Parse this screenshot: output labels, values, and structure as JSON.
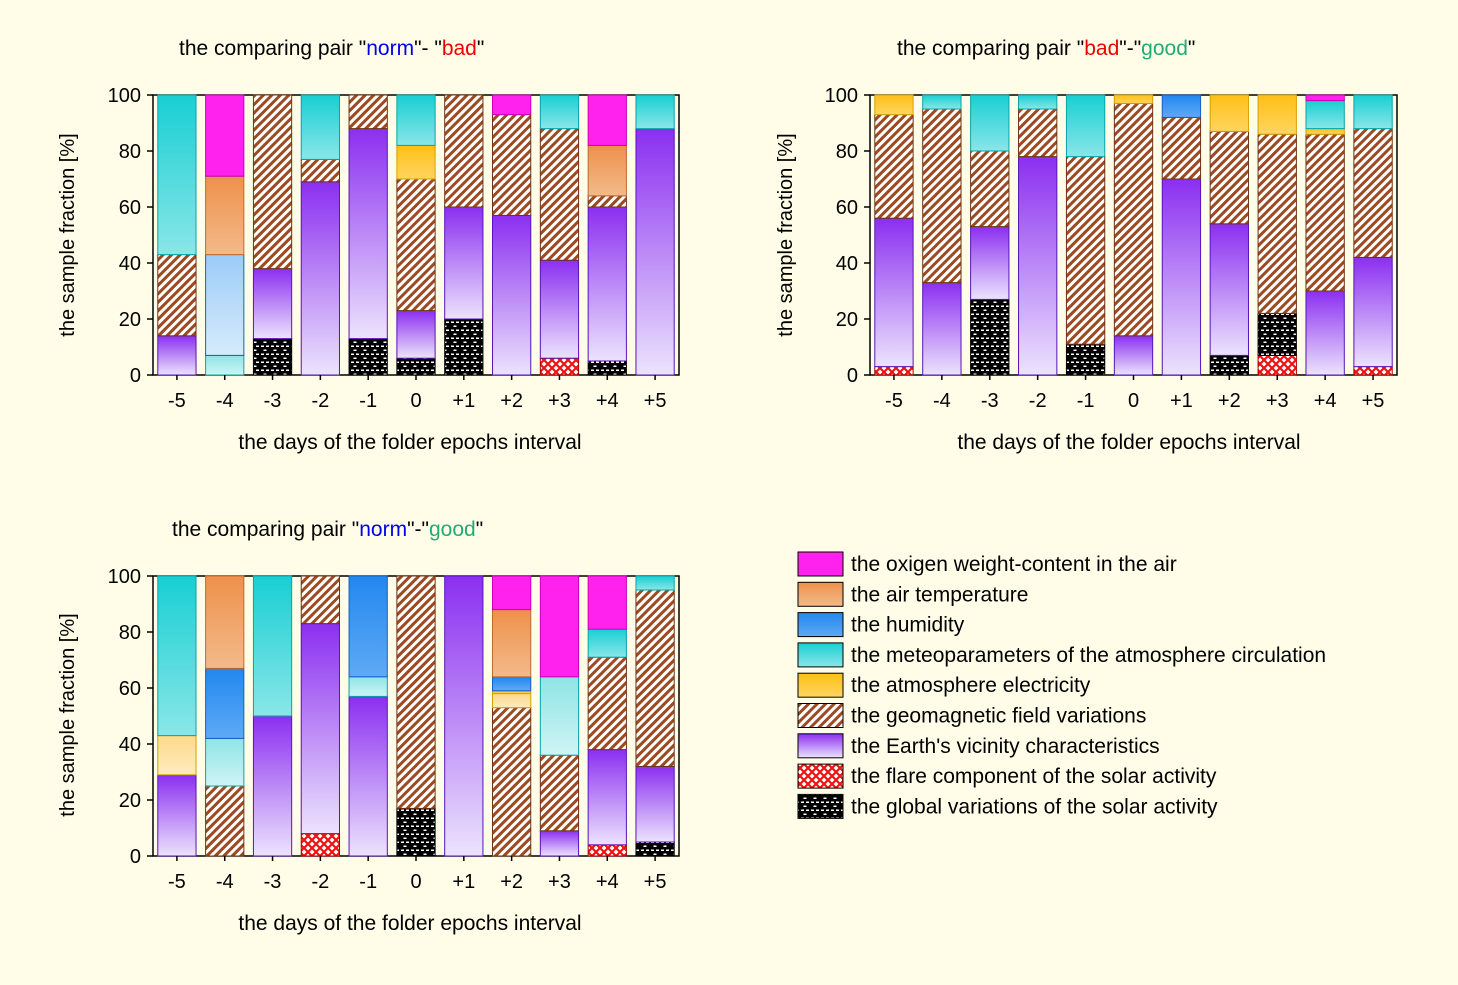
{
  "page": {
    "background": "#fffde8"
  },
  "legend": {
    "items": [
      {
        "label": "the oxigen weight-content in the air",
        "key": "oxygen"
      },
      {
        "label": "the air temperature",
        "key": "temperature"
      },
      {
        "label": "the humidity",
        "key": "humidity"
      },
      {
        "label": "the meteoparameters of the atmosphere circulation",
        "key": "meteo"
      },
      {
        "label": "the atmosphere electricity",
        "key": "electricity"
      },
      {
        "label": "the geomagnetic field variations",
        "key": "geomagnetic"
      },
      {
        "label": "the Earth's vicinity characteristics",
        "key": "vicinity"
      },
      {
        "label": "the flare component of the solar activity",
        "key": "flare"
      },
      {
        "label": "the global variations of the solar activity",
        "key": "global"
      }
    ]
  },
  "colors": {
    "oxygen": "#ff22ee",
    "temperature": "#ee9a55",
    "humidity": "#2b8cf0",
    "meteo": "#1ccfd2",
    "electricity": "#ffc21f",
    "geomagnetic": "#a0522d",
    "vicinity": "#8a2be2",
    "flare": "#ee1111",
    "global": "#000000",
    "title_norm": "#0000ee",
    "title_bad": "#ee0000",
    "title_good": "#22aa77"
  },
  "chart_data": [
    {
      "type": "bar",
      "stacked": true,
      "title_parts": [
        {
          "text": "the comparing pair \"",
          "color": "#000000"
        },
        {
          "text": "norm",
          "color": "#0000ee"
        },
        {
          "text": "\"- \"",
          "color": "#000000"
        },
        {
          "text": "bad",
          "color": "#ee0000"
        },
        {
          "text": "\"",
          "color": "#000000"
        }
      ],
      "xlabel": "the days of the folder epochs interval",
      "ylabel": "the sample fraction [%]",
      "ylim": [
        0,
        100
      ],
      "yticks": [
        0,
        20,
        40,
        60,
        80,
        100
      ],
      "categories": [
        "-5",
        "-4",
        "-3",
        "-2",
        "-1",
        "0",
        "+1",
        "+2",
        "+3",
        "+4",
        "+5"
      ],
      "bars": [
        [
          {
            "s": "vicinity",
            "v": 14
          },
          {
            "s": "geomagnetic",
            "v": 29
          },
          {
            "s": "meteo",
            "v": 57
          }
        ],
        [
          {
            "s": "meteo",
            "v": 7,
            "pale": true
          },
          {
            "s": "humidity",
            "v": 36,
            "pale": true
          },
          {
            "s": "temperature",
            "v": 28
          },
          {
            "s": "oxygen",
            "v": 29
          }
        ],
        [
          {
            "s": "global",
            "v": 13
          },
          {
            "s": "vicinity",
            "v": 25
          },
          {
            "s": "geomagnetic",
            "v": 62
          }
        ],
        [
          {
            "s": "vicinity",
            "v": 69
          },
          {
            "s": "geomagnetic",
            "v": 8
          },
          {
            "s": "meteo",
            "v": 23
          }
        ],
        [
          {
            "s": "global",
            "v": 13
          },
          {
            "s": "vicinity",
            "v": 75
          },
          {
            "s": "geomagnetic",
            "v": 12
          }
        ],
        [
          {
            "s": "global",
            "v": 6
          },
          {
            "s": "vicinity",
            "v": 17
          },
          {
            "s": "geomagnetic",
            "v": 47
          },
          {
            "s": "electricity",
            "v": 12
          },
          {
            "s": "meteo",
            "v": 18
          }
        ],
        [
          {
            "s": "global",
            "v": 20
          },
          {
            "s": "vicinity",
            "v": 40
          },
          {
            "s": "geomagnetic",
            "v": 40
          }
        ],
        [
          {
            "s": "vicinity",
            "v": 57
          },
          {
            "s": "geomagnetic",
            "v": 36
          },
          {
            "s": "oxygen",
            "v": 7
          }
        ],
        [
          {
            "s": "flare",
            "v": 6
          },
          {
            "s": "vicinity",
            "v": 35
          },
          {
            "s": "geomagnetic",
            "v": 47
          },
          {
            "s": "meteo",
            "v": 12
          }
        ],
        [
          {
            "s": "global",
            "v": 5
          },
          {
            "s": "vicinity",
            "v": 55
          },
          {
            "s": "geomagnetic",
            "v": 4
          },
          {
            "s": "temperature",
            "v": 18
          },
          {
            "s": "oxygen",
            "v": 18
          }
        ],
        [
          {
            "s": "vicinity",
            "v": 88
          },
          {
            "s": "meteo",
            "v": 12
          }
        ]
      ]
    },
    {
      "type": "bar",
      "stacked": true,
      "title_parts": [
        {
          "text": "the comparing pair \"",
          "color": "#000000"
        },
        {
          "text": "bad",
          "color": "#ee0000"
        },
        {
          "text": "\"-\"",
          "color": "#000000"
        },
        {
          "text": "good",
          "color": "#22aa77"
        },
        {
          "text": "\"",
          "color": "#000000"
        }
      ],
      "xlabel": "the days of the folder epochs interval",
      "ylabel": "the sample fraction [%]",
      "ylim": [
        0,
        100
      ],
      "yticks": [
        0,
        20,
        40,
        60,
        80,
        100
      ],
      "categories": [
        "-5",
        "-4",
        "-3",
        "-2",
        "-1",
        "0",
        "+1",
        "+2",
        "+3",
        "+4",
        "+5"
      ],
      "bars": [
        [
          {
            "s": "flare",
            "v": 3
          },
          {
            "s": "vicinity",
            "v": 53
          },
          {
            "s": "geomagnetic",
            "v": 37
          },
          {
            "s": "electricity",
            "v": 7
          }
        ],
        [
          {
            "s": "vicinity",
            "v": 33
          },
          {
            "s": "geomagnetic",
            "v": 62
          },
          {
            "s": "meteo",
            "v": 5
          }
        ],
        [
          {
            "s": "global",
            "v": 27
          },
          {
            "s": "vicinity",
            "v": 26
          },
          {
            "s": "geomagnetic",
            "v": 27
          },
          {
            "s": "meteo",
            "v": 20
          }
        ],
        [
          {
            "s": "vicinity",
            "v": 78
          },
          {
            "s": "geomagnetic",
            "v": 17
          },
          {
            "s": "meteo",
            "v": 5
          }
        ],
        [
          {
            "s": "global",
            "v": 11
          },
          {
            "s": "geomagnetic",
            "v": 67
          },
          {
            "s": "meteo",
            "v": 22
          }
        ],
        [
          {
            "s": "vicinity",
            "v": 14
          },
          {
            "s": "geomagnetic",
            "v": 83
          },
          {
            "s": "electricity",
            "v": 3
          }
        ],
        [
          {
            "s": "vicinity",
            "v": 70
          },
          {
            "s": "geomagnetic",
            "v": 22
          },
          {
            "s": "humidity",
            "v": 8
          }
        ],
        [
          {
            "s": "global",
            "v": 7
          },
          {
            "s": "vicinity",
            "v": 47
          },
          {
            "s": "geomagnetic",
            "v": 33
          },
          {
            "s": "electricity",
            "v": 13
          }
        ],
        [
          {
            "s": "flare",
            "v": 7
          },
          {
            "s": "global",
            "v": 15
          },
          {
            "s": "geomagnetic",
            "v": 64
          },
          {
            "s": "electricity",
            "v": 14
          }
        ],
        [
          {
            "s": "vicinity",
            "v": 30
          },
          {
            "s": "geomagnetic",
            "v": 56
          },
          {
            "s": "electricity",
            "v": 2
          },
          {
            "s": "meteo",
            "v": 10
          },
          {
            "s": "oxygen",
            "v": 2
          }
        ],
        [
          {
            "s": "flare",
            "v": 3
          },
          {
            "s": "vicinity",
            "v": 39
          },
          {
            "s": "geomagnetic",
            "v": 46
          },
          {
            "s": "meteo",
            "v": 12
          }
        ]
      ]
    },
    {
      "type": "bar",
      "stacked": true,
      "title_parts": [
        {
          "text": "the comparing pair \"",
          "color": "#000000"
        },
        {
          "text": "norm",
          "color": "#0000ee"
        },
        {
          "text": "\"-\"",
          "color": "#000000"
        },
        {
          "text": "good",
          "color": "#22aa77"
        },
        {
          "text": "\"",
          "color": "#000000"
        }
      ],
      "xlabel": "the days of the folder epochs interval",
      "ylabel": "the sample fraction [%]",
      "ylim": [
        0,
        100
      ],
      "yticks": [
        0,
        20,
        40,
        60,
        80,
        100
      ],
      "categories": [
        "-5",
        "-4",
        "-3",
        "-2",
        "-1",
        "0",
        "+1",
        "+2",
        "+3",
        "+4",
        "+5"
      ],
      "bars": [
        [
          {
            "s": "vicinity",
            "v": 29
          },
          {
            "s": "electricity",
            "v": 14,
            "pale": true
          },
          {
            "s": "meteo",
            "v": 57
          }
        ],
        [
          {
            "s": "geomagnetic",
            "v": 25
          },
          {
            "s": "meteo",
            "v": 17,
            "pale": true
          },
          {
            "s": "humidity",
            "v": 25
          },
          {
            "s": "temperature",
            "v": 33
          }
        ],
        [
          {
            "s": "vicinity",
            "v": 50
          },
          {
            "s": "meteo",
            "v": 50
          }
        ],
        [
          {
            "s": "flare",
            "v": 8
          },
          {
            "s": "vicinity",
            "v": 75
          },
          {
            "s": "geomagnetic",
            "v": 17
          }
        ],
        [
          {
            "s": "vicinity",
            "v": 57
          },
          {
            "s": "meteo",
            "v": 7,
            "pale": true
          },
          {
            "s": "humidity",
            "v": 36
          }
        ],
        [
          {
            "s": "global",
            "v": 17
          },
          {
            "s": "geomagnetic",
            "v": 83
          }
        ],
        [
          {
            "s": "vicinity",
            "v": 100
          }
        ],
        [
          {
            "s": "geomagnetic",
            "v": 53
          },
          {
            "s": "electricity",
            "v": 5,
            "pale": true
          },
          {
            "s": "electricity",
            "v": 1
          },
          {
            "s": "humidity",
            "v": 5
          },
          {
            "s": "temperature",
            "v": 24
          },
          {
            "s": "oxygen",
            "v": 12
          }
        ],
        [
          {
            "s": "vicinity",
            "v": 9
          },
          {
            "s": "geomagnetic",
            "v": 27
          },
          {
            "s": "meteo",
            "v": 28,
            "pale": true
          },
          {
            "s": "oxygen",
            "v": 36
          }
        ],
        [
          {
            "s": "flare",
            "v": 4
          },
          {
            "s": "vicinity",
            "v": 34
          },
          {
            "s": "geomagnetic",
            "v": 33
          },
          {
            "s": "meteo",
            "v": 10
          },
          {
            "s": "oxygen",
            "v": 19
          }
        ],
        [
          {
            "s": "global",
            "v": 5
          },
          {
            "s": "vicinity",
            "v": 27
          },
          {
            "s": "geomagnetic",
            "v": 63
          },
          {
            "s": "meteo",
            "v": 5
          }
        ]
      ]
    }
  ]
}
